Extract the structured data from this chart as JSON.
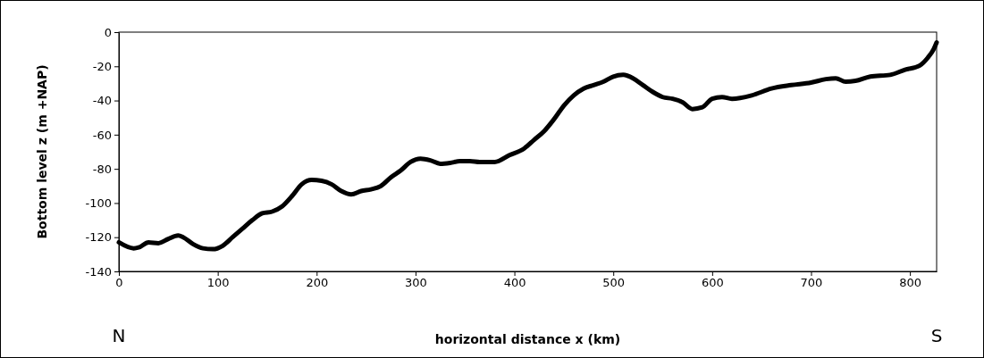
{
  "chart_data": {
    "type": "line",
    "xlabel": "horizontal distance  x (km)",
    "ylabel": "Bottom level z (m +NAP)",
    "annotations": [
      "N",
      "S"
    ],
    "xlim": [
      0,
      827
    ],
    "xticks": [
      0,
      100,
      200,
      300,
      400,
      500,
      600,
      700,
      800
    ],
    "ylim": [
      -140,
      0
    ],
    "yticks": [
      -140,
      -120,
      -100,
      -80,
      -60,
      -40,
      -20,
      0
    ],
    "grid": false,
    "marker": "none",
    "line_style": "solid",
    "series": [
      {
        "color": "#000000",
        "x": [
          0,
          15,
          20,
          30,
          40,
          50,
          60,
          65,
          75,
          85,
          95,
          105,
          115,
          125,
          135,
          145,
          155,
          165,
          175,
          185,
          195,
          205,
          215,
          225,
          235,
          245,
          255,
          265,
          275,
          285,
          295,
          305,
          315,
          325,
          335,
          345,
          355,
          365,
          380,
          395,
          410,
          420,
          430,
          440,
          450,
          460,
          470,
          480,
          490,
          500,
          510,
          520,
          530,
          540,
          550,
          560,
          570,
          580,
          590,
          600,
          610,
          620,
          640,
          660,
          680,
          700,
          715,
          725,
          735,
          745,
          760,
          780,
          795,
          810,
          818,
          824,
          827
        ],
        "values": [
          -123,
          -126.5,
          -126,
          -123,
          -123.5,
          -121,
          -119,
          -120,
          -124,
          -126.5,
          -127,
          -125,
          -120,
          -115,
          -110,
          -106,
          -105,
          -102,
          -96,
          -89,
          -86.5,
          -87,
          -89,
          -93,
          -95,
          -93,
          -92,
          -90,
          -85,
          -81,
          -76,
          -74,
          -75,
          -77,
          -76.5,
          -75.5,
          -75.5,
          -76,
          -76,
          -72,
          -68,
          -63,
          -58,
          -51,
          -43,
          -37,
          -33,
          -31,
          -29,
          -26,
          -25,
          -27,
          -31,
          -35,
          -38,
          -39,
          -41,
          -45,
          -44,
          -39,
          -38,
          -39,
          -37,
          -33,
          -31,
          -29.5,
          -27.5,
          -27,
          -29,
          -28.5,
          -26,
          -25,
          -22,
          -19.5,
          -15,
          -10,
          -6
        ]
      }
    ]
  }
}
